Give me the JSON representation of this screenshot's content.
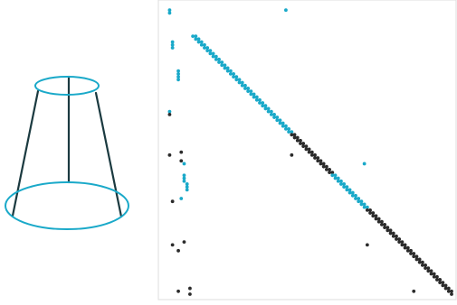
{
  "colors": {
    "background": "#ffffff",
    "frame": "#dddddd",
    "cyan": "#1aa9c9",
    "dark": "#2b2b2b",
    "lampshade_stroke": "#1b3a40"
  },
  "lampshade_icon": "wireframe-lampshade-icon",
  "matrix": {
    "size": 100,
    "diagonal": [
      {
        "from": 10,
        "to": 44,
        "color": "cyan"
      },
      {
        "from": 44,
        "to": 58,
        "color": "dark"
      },
      {
        "from": 58,
        "to": 70,
        "color": "cyan"
      },
      {
        "from": 70,
        "to": 100,
        "color": "dark"
      }
    ],
    "extra_points": [
      {
        "c": 2,
        "r": 1,
        "color": "cyan"
      },
      {
        "c": 2,
        "r": 2,
        "color": "cyan"
      },
      {
        "c": 42,
        "r": 1,
        "color": "cyan"
      },
      {
        "c": 3,
        "r": 12,
        "color": "cyan"
      },
      {
        "c": 3,
        "r": 13,
        "color": "cyan"
      },
      {
        "c": 3,
        "r": 14,
        "color": "cyan"
      },
      {
        "c": 5,
        "r": 22,
        "color": "cyan"
      },
      {
        "c": 5,
        "r": 23,
        "color": "cyan"
      },
      {
        "c": 5,
        "r": 24,
        "color": "cyan"
      },
      {
        "c": 5,
        "r": 25,
        "color": "cyan"
      },
      {
        "c": 2,
        "r": 36,
        "color": "cyan"
      },
      {
        "c": 2,
        "r": 37,
        "color": "dark"
      },
      {
        "c": 2,
        "r": 51,
        "color": "dark"
      },
      {
        "c": 6,
        "r": 50,
        "color": "dark"
      },
      {
        "c": 6,
        "r": 53,
        "color": "dark"
      },
      {
        "c": 7,
        "r": 54,
        "color": "cyan"
      },
      {
        "c": 7,
        "r": 58,
        "color": "cyan"
      },
      {
        "c": 7,
        "r": 59,
        "color": "cyan"
      },
      {
        "c": 7,
        "r": 60,
        "color": "cyan"
      },
      {
        "c": 8,
        "r": 61,
        "color": "cyan"
      },
      {
        "c": 8,
        "r": 62,
        "color": "cyan"
      },
      {
        "c": 8,
        "r": 63,
        "color": "cyan"
      },
      {
        "c": 6,
        "r": 66,
        "color": "cyan"
      },
      {
        "c": 3,
        "r": 67,
        "color": "dark"
      },
      {
        "c": 44,
        "r": 51,
        "color": "dark"
      },
      {
        "c": 69,
        "r": 54,
        "color": "cyan"
      },
      {
        "c": 3,
        "r": 82,
        "color": "dark"
      },
      {
        "c": 5,
        "r": 84,
        "color": "dark"
      },
      {
        "c": 7,
        "r": 81,
        "color": "dark"
      },
      {
        "c": 70,
        "r": 82,
        "color": "dark"
      },
      {
        "c": 5,
        "r": 98,
        "color": "dark"
      },
      {
        "c": 9,
        "r": 97,
        "color": "dark"
      },
      {
        "c": 9,
        "r": 99,
        "color": "dark"
      },
      {
        "c": 86,
        "r": 98,
        "color": "dark"
      }
    ]
  }
}
